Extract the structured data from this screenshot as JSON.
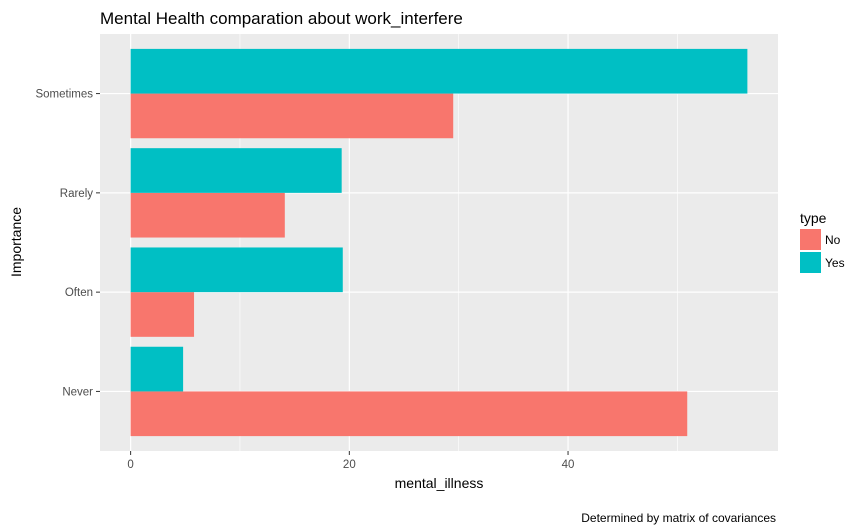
{
  "chart_data": {
    "type": "bar",
    "orientation": "horizontal",
    "title": "Mental Health comparation about work_interfere",
    "xlabel": "mental_illness",
    "ylabel": "Importance",
    "caption": "Determined by matrix of covariances",
    "categories": [
      "Never",
      "Often",
      "Rarely",
      "Sometimes"
    ],
    "series": [
      {
        "name": "No",
        "color": "#F8766D",
        "values": [
          50.9,
          5.8,
          14.1,
          29.5
        ]
      },
      {
        "name": "Yes",
        "color": "#00BFC4",
        "values": [
          4.8,
          19.4,
          19.3,
          56.4
        ]
      }
    ],
    "xlim": [
      -2.8,
      59.2
    ],
    "xticks": [
      0,
      20,
      40
    ],
    "legend": {
      "title": "type",
      "position": "right"
    },
    "grid": true,
    "panel_background": "#EBEBEB",
    "grid_color": "#FFFFFF"
  }
}
